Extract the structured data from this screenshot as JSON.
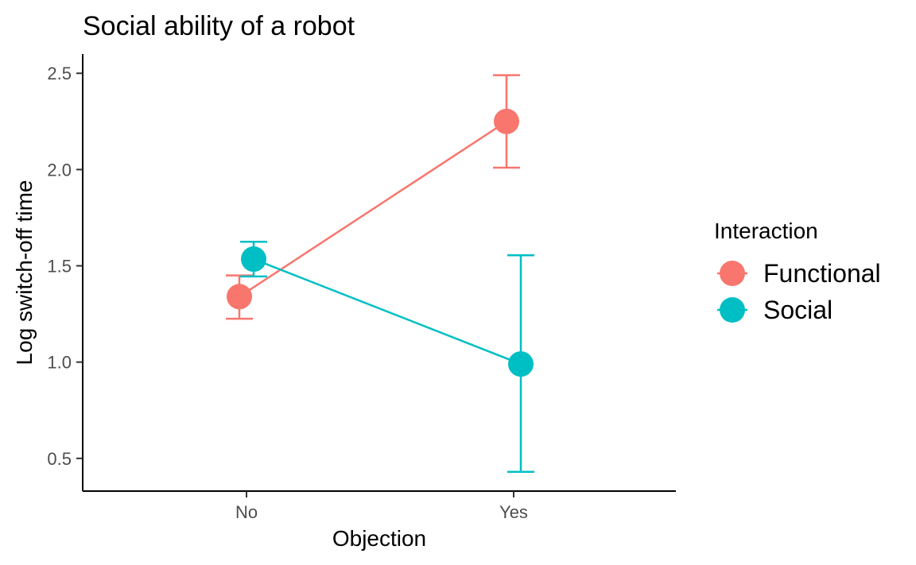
{
  "chart_data": {
    "type": "line",
    "title": "Social ability of a robot",
    "xlabel": "Objection",
    "ylabel": "Log switch-off time",
    "categories": [
      "No",
      "Yes"
    ],
    "ylim": [
      0.33,
      2.6
    ],
    "yticks": [
      "0.5",
      "1.0",
      "1.5",
      "2.0",
      "2.5"
    ],
    "yticks_values": [
      0.5,
      1.0,
      1.5,
      2.0,
      2.5
    ],
    "grid": false,
    "legend_position": "right",
    "legend_title": "Interaction",
    "series": [
      {
        "name": "Functional",
        "color": "#F8766D",
        "values": [
          1.34,
          2.25
        ],
        "error_low": [
          1.225,
          2.01
        ],
        "error_high": [
          1.45,
          2.49
        ]
      },
      {
        "name": "Social",
        "color": "#00BFC4",
        "values": [
          1.535,
          0.99
        ],
        "error_low": [
          1.445,
          0.43
        ],
        "error_high": [
          1.625,
          1.555
        ]
      }
    ]
  }
}
